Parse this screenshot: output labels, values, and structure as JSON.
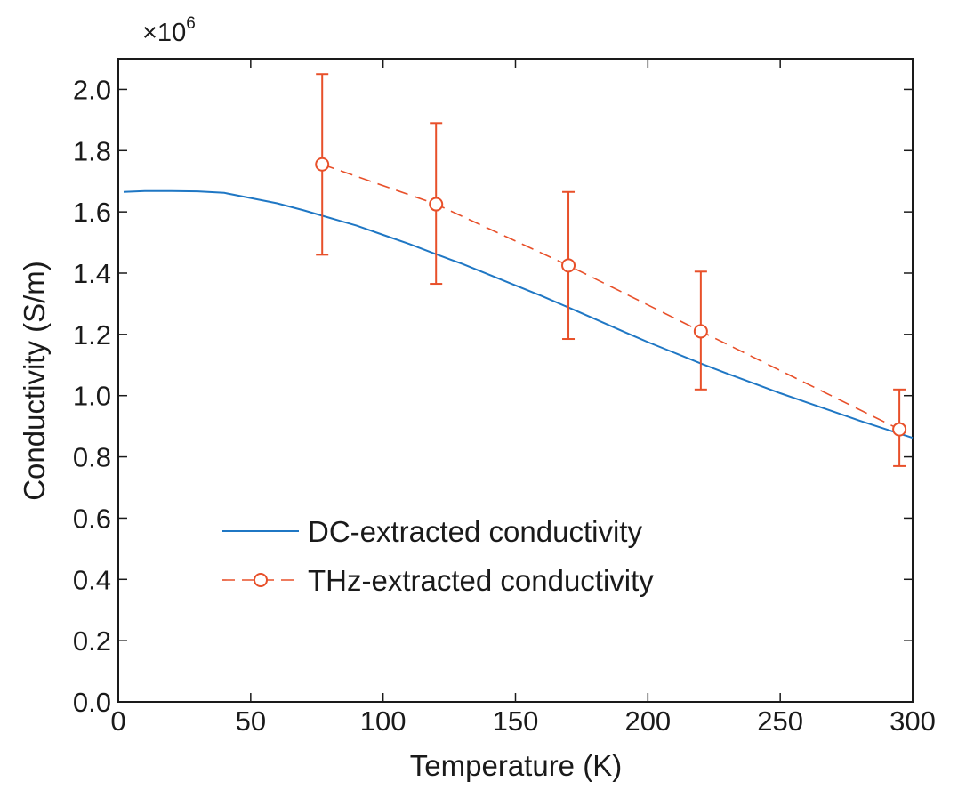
{
  "chart_data": {
    "type": "line",
    "title": "",
    "xlabel": "Temperature (K)",
    "ylabel": "Conductivity (S/m)",
    "y_multiplier": {
      "base": "×10",
      "exponent": "6"
    },
    "xlim": [
      0,
      300
    ],
    "ylim": [
      0.0,
      2.1
    ],
    "x_ticks": [
      0,
      50,
      100,
      150,
      200,
      250,
      300
    ],
    "x_tick_labels": [
      "0",
      "50",
      "100",
      "150",
      "200",
      "250",
      "300"
    ],
    "y_ticks": [
      0.0,
      0.2,
      0.4,
      0.6,
      0.8,
      1.0,
      1.2,
      1.4,
      1.6,
      1.8,
      2.0
    ],
    "y_tick_labels": [
      "0.0",
      "0.2",
      "0.4",
      "0.6",
      "0.8",
      "1.0",
      "1.2",
      "1.4",
      "1.6",
      "1.8",
      "2.0"
    ],
    "grid": false,
    "legend_position": "lower-center",
    "series": [
      {
        "name": "DC-extracted conductivity",
        "color": "#1f77c4",
        "style": "solid",
        "x": [
          2,
          10,
          20,
          30,
          40,
          50,
          60,
          70,
          80,
          90,
          100,
          110,
          120,
          130,
          140,
          150,
          160,
          170,
          180,
          190,
          200,
          210,
          220,
          230,
          240,
          250,
          260,
          270,
          280,
          290,
          300
        ],
        "y": [
          1.665,
          1.668,
          1.668,
          1.667,
          1.662,
          1.645,
          1.628,
          1.605,
          1.58,
          1.555,
          1.525,
          1.495,
          1.462,
          1.43,
          1.395,
          1.36,
          1.325,
          1.288,
          1.25,
          1.212,
          1.175,
          1.14,
          1.105,
          1.072,
          1.04,
          1.008,
          0.978,
          0.948,
          0.918,
          0.89,
          0.862
        ]
      },
      {
        "name": "THz-extracted conductivity",
        "color": "#e8502a",
        "style": "dashed",
        "marker": "circle",
        "x": [
          77,
          120,
          170,
          220,
          295
        ],
        "y": [
          1.755,
          1.625,
          1.425,
          1.21,
          0.89
        ],
        "yerr_low": [
          1.46,
          1.365,
          1.185,
          1.02,
          0.77
        ],
        "yerr_high": [
          2.05,
          1.89,
          1.665,
          1.405,
          1.02
        ]
      }
    ]
  }
}
